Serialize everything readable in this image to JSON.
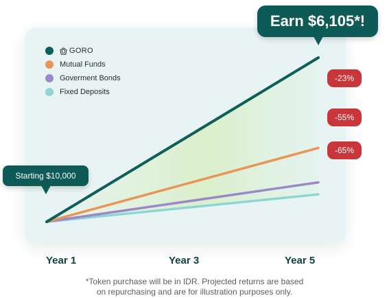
{
  "chart_data": {
    "type": "line",
    "x": [
      "Year 1",
      "Year 3",
      "Year 5"
    ],
    "x_ticks": [
      "Year 1",
      "Year 3",
      "Year 5"
    ],
    "start_label": "Starting $10,000",
    "earn_label": "Earn $6,105*!",
    "series": [
      {
        "name": "GORO",
        "color": "#0e5e5a",
        "start": 10000,
        "end": 16105
      },
      {
        "name": "Mutual Funds",
        "color": "#e8955a",
        "start": 10000,
        "end": 12747
      },
      {
        "name": "Goverment Bonds",
        "color": "#9a89c9",
        "start": 10000,
        "end": 11465
      },
      {
        "name": "Fixed Deposits",
        "color": "#8ed6d3",
        "start": 10000,
        "end": 11020
      }
    ],
    "differences": [
      "-23%",
      "-55%",
      "-65%"
    ],
    "ylim": [
      10000,
      16105
    ],
    "grid": false,
    "legend_position": "top-left",
    "footnote_lines": [
      "*Token purchase will be in IDR. Projected returns are based",
      "on repurchasing and are for illustration purposes only."
    ]
  }
}
